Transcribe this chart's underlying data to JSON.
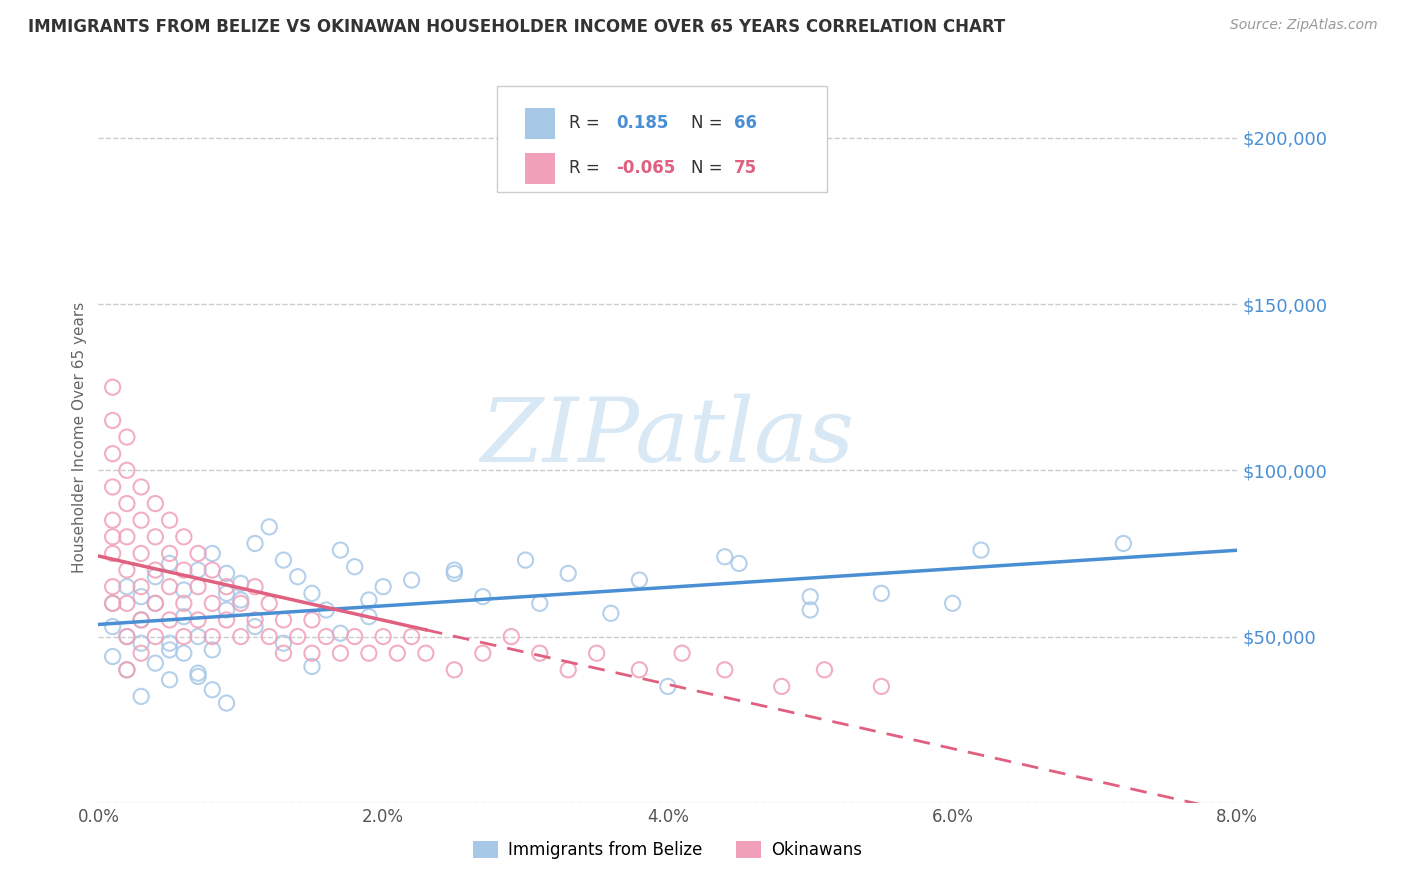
{
  "title": "IMMIGRANTS FROM BELIZE VS OKINAWAN HOUSEHOLDER INCOME OVER 65 YEARS CORRELATION CHART",
  "source": "Source: ZipAtlas.com",
  "ylabel": "Householder Income Over 65 years",
  "xlim": [
    0.0,
    0.08
  ],
  "ylim": [
    0,
    220000
  ],
  "yticks": [
    0,
    50000,
    100000,
    150000,
    200000
  ],
  "ytick_labels": [
    "",
    "$50,000",
    "$100,000",
    "$150,000",
    "$200,000"
  ],
  "xticks": [
    0.0,
    0.02,
    0.04,
    0.06,
    0.08
  ],
  "xtick_labels": [
    "0.0%",
    "2.0%",
    "4.0%",
    "6.0%",
    "8.0%"
  ],
  "legend_labels": [
    "Immigrants from Belize",
    "Okinawans"
  ],
  "belize_R": 0.185,
  "belize_N": 66,
  "okinawa_R": -0.065,
  "okinawa_N": 75,
  "belize_color": "#a8c8e8",
  "okinawa_color": "#f0a0b8",
  "belize_line_color": "#4a8fd4",
  "okinawa_line_color": "#e06080",
  "background_color": "#ffffff",
  "title_color": "#333333",
  "axis_label_color": "#666666",
  "ytick_color": "#4a8fd4",
  "grid_color": "#cccccc",
  "watermark_color": "#d8e8f4",
  "belize_scatter_x": [
    0.001,
    0.002,
    0.003,
    0.004,
    0.005,
    0.006,
    0.007,
    0.008,
    0.009,
    0.01,
    0.001,
    0.002,
    0.003,
    0.004,
    0.005,
    0.006,
    0.007,
    0.008,
    0.009,
    0.01,
    0.001,
    0.002,
    0.003,
    0.004,
    0.005,
    0.006,
    0.007,
    0.008,
    0.009,
    0.011,
    0.012,
    0.013,
    0.014,
    0.015,
    0.016,
    0.017,
    0.018,
    0.019,
    0.02,
    0.022,
    0.025,
    0.027,
    0.03,
    0.033,
    0.036,
    0.04,
    0.045,
    0.05,
    0.055,
    0.06,
    0.003,
    0.005,
    0.007,
    0.009,
    0.011,
    0.013,
    0.015,
    0.017,
    0.019,
    0.025,
    0.031,
    0.038,
    0.044,
    0.05,
    0.062,
    0.072
  ],
  "belize_scatter_y": [
    60000,
    65000,
    62000,
    68000,
    72000,
    64000,
    70000,
    75000,
    58000,
    66000,
    53000,
    50000,
    55000,
    60000,
    48000,
    56000,
    50000,
    46000,
    63000,
    61000,
    44000,
    40000,
    48000,
    42000,
    37000,
    45000,
    39000,
    34000,
    69000,
    78000,
    83000,
    73000,
    68000,
    63000,
    58000,
    76000,
    71000,
    61000,
    65000,
    67000,
    70000,
    62000,
    73000,
    69000,
    57000,
    35000,
    72000,
    58000,
    63000,
    60000,
    32000,
    46000,
    38000,
    30000,
    53000,
    48000,
    41000,
    51000,
    56000,
    69000,
    60000,
    67000,
    74000,
    62000,
    76000,
    78000
  ],
  "okinawa_scatter_x": [
    0.001,
    0.001,
    0.001,
    0.001,
    0.001,
    0.001,
    0.001,
    0.001,
    0.001,
    0.002,
    0.002,
    0.002,
    0.002,
    0.002,
    0.002,
    0.002,
    0.002,
    0.003,
    0.003,
    0.003,
    0.003,
    0.003,
    0.003,
    0.004,
    0.004,
    0.004,
    0.004,
    0.004,
    0.005,
    0.005,
    0.005,
    0.005,
    0.006,
    0.006,
    0.006,
    0.006,
    0.007,
    0.007,
    0.007,
    0.008,
    0.008,
    0.008,
    0.009,
    0.009,
    0.01,
    0.01,
    0.011,
    0.011,
    0.012,
    0.012,
    0.013,
    0.013,
    0.014,
    0.015,
    0.015,
    0.016,
    0.017,
    0.018,
    0.019,
    0.02,
    0.021,
    0.022,
    0.023,
    0.025,
    0.027,
    0.029,
    0.031,
    0.033,
    0.035,
    0.038,
    0.041,
    0.044,
    0.048,
    0.051,
    0.055
  ],
  "okinawa_scatter_y": [
    65000,
    75000,
    85000,
    95000,
    105000,
    115000,
    125000,
    80000,
    60000,
    90000,
    100000,
    110000,
    70000,
    80000,
    60000,
    50000,
    40000,
    95000,
    85000,
    75000,
    65000,
    55000,
    45000,
    90000,
    80000,
    70000,
    60000,
    50000,
    85000,
    75000,
    65000,
    55000,
    80000,
    70000,
    60000,
    50000,
    75000,
    65000,
    55000,
    70000,
    60000,
    50000,
    65000,
    55000,
    60000,
    50000,
    55000,
    65000,
    50000,
    60000,
    55000,
    45000,
    50000,
    55000,
    45000,
    50000,
    45000,
    50000,
    45000,
    50000,
    45000,
    50000,
    45000,
    40000,
    45000,
    50000,
    45000,
    40000,
    45000,
    40000,
    45000,
    40000,
    35000,
    40000,
    35000
  ]
}
